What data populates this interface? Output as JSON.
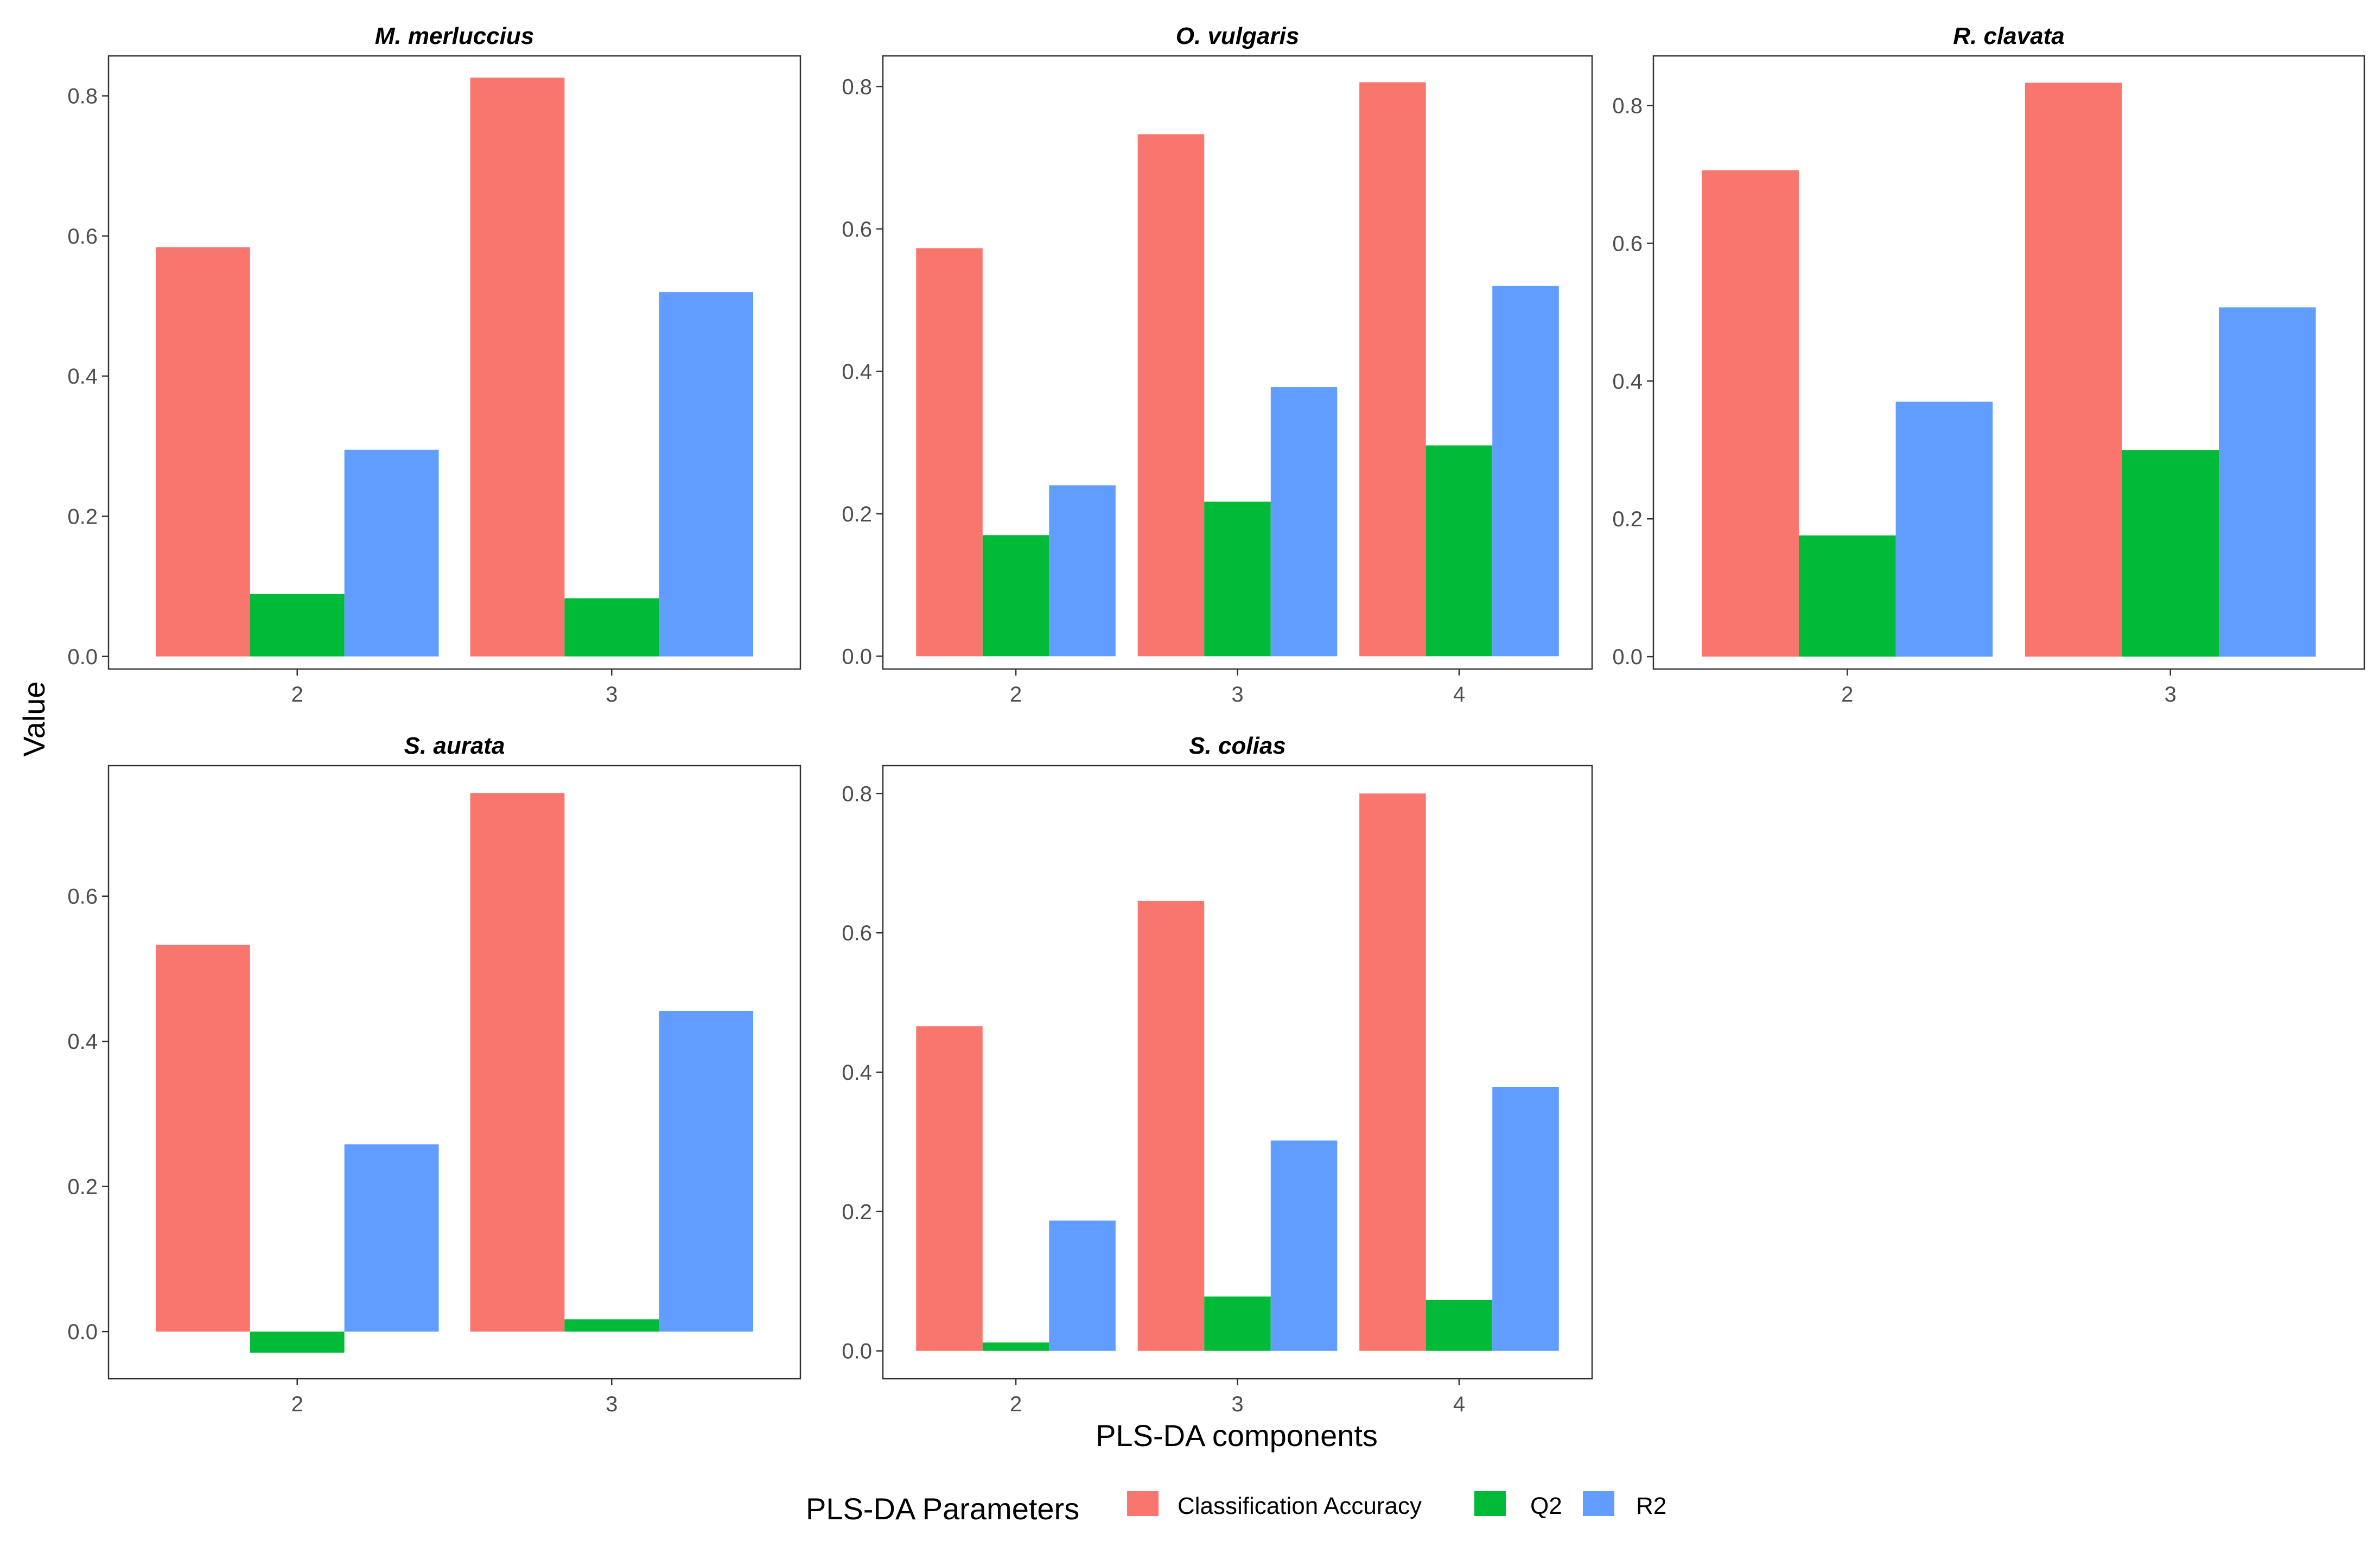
{
  "chart_data": {
    "type": "bar",
    "xlabel": "PLS-DA components",
    "ylabel": "Value",
    "legend": {
      "title": "PLS-DA Parameters",
      "position": "bottom",
      "entries": [
        "Classification Accuracy",
        "Q2",
        "R2"
      ]
    },
    "colors": {
      "Classification Accuracy": "#F8766D",
      "Q2": "#00BA38",
      "R2": "#619CFF"
    },
    "grid": false,
    "panels": [
      {
        "title": "M. merluccius",
        "categories": [
          "2",
          "3"
        ],
        "ylim": [
          -0.018,
          0.857
        ],
        "yticks": [
          "0.0",
          "0.2",
          "0.4",
          "0.6",
          "0.8"
        ],
        "series": [
          {
            "name": "Classification Accuracy",
            "values": [
              0.584,
              0.826
            ]
          },
          {
            "name": "Q2",
            "values": [
              0.089,
              0.083
            ]
          },
          {
            "name": "R2",
            "values": [
              0.295,
              0.52
            ]
          }
        ]
      },
      {
        "title": "O. vulgaris",
        "categories": [
          "2",
          "3",
          "4"
        ],
        "ylim": [
          -0.018,
          0.843
        ],
        "yticks": [
          "0.0",
          "0.2",
          "0.4",
          "0.6",
          "0.8"
        ],
        "series": [
          {
            "name": "Classification Accuracy",
            "values": [
              0.573,
              0.733,
              0.806
            ]
          },
          {
            "name": "Q2",
            "values": [
              0.17,
              0.217,
              0.296
            ]
          },
          {
            "name": "R2",
            "values": [
              0.24,
              0.378,
              0.52
            ]
          }
        ]
      },
      {
        "title": "R. clavata",
        "categories": [
          "2",
          "3"
        ],
        "ylim": [
          -0.018,
          0.872
        ],
        "yticks": [
          "0.0",
          "0.2",
          "0.4",
          "0.6",
          "0.8"
        ],
        "series": [
          {
            "name": "Classification Accuracy",
            "values": [
              0.706,
              0.833
            ]
          },
          {
            "name": "Q2",
            "values": [
              0.176,
              0.3
            ]
          },
          {
            "name": "R2",
            "values": [
              0.37,
              0.507
            ]
          }
        ]
      },
      {
        "title": "S. aurata",
        "categories": [
          "2",
          "3"
        ],
        "ylim": [
          -0.065,
          0.78
        ],
        "yticks": [
          "0.0",
          "0.2",
          "0.4",
          "0.6"
        ],
        "series": [
          {
            "name": "Classification Accuracy",
            "values": [
              0.533,
              0.742
            ]
          },
          {
            "name": "Q2",
            "values": [
              -0.029,
              0.017
            ]
          },
          {
            "name": "R2",
            "values": [
              0.258,
              0.442
            ]
          }
        ]
      },
      {
        "title": "S. colias",
        "categories": [
          "2",
          "3",
          "4"
        ],
        "ylim": [
          -0.04,
          0.84
        ],
        "yticks": [
          "0.0",
          "0.2",
          "0.4",
          "0.6",
          "0.8"
        ],
        "series": [
          {
            "name": "Classification Accuracy",
            "values": [
              0.466,
              0.646,
              0.8
            ]
          },
          {
            "name": "Q2",
            "values": [
              0.012,
              0.078,
              0.073
            ]
          },
          {
            "name": "R2",
            "values": [
              0.187,
              0.302,
              0.379
            ]
          }
        ]
      }
    ]
  }
}
